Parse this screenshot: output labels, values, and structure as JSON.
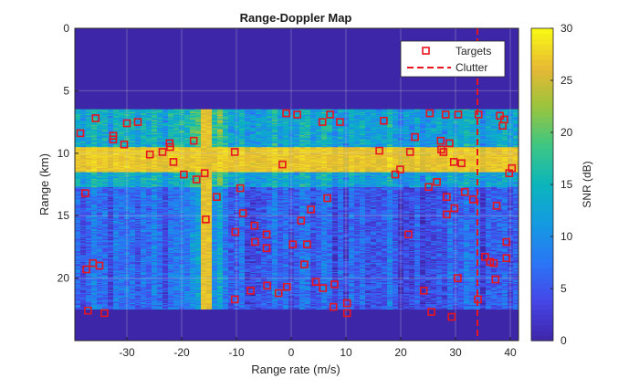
{
  "chart_data": {
    "type": "heatmap",
    "title": "Range-Doppler Map",
    "xlabel": "Range rate (m/s)",
    "ylabel": "Range (km)",
    "xlim": [
      -39.5,
      41.5
    ],
    "ylim": [
      0,
      25
    ],
    "y_reversed": true,
    "xticks": [
      -30,
      -20,
      -10,
      0,
      10,
      20,
      30,
      40
    ],
    "yticks": [
      0,
      5,
      10,
      15,
      20
    ],
    "grid": true,
    "colormap": "parula",
    "colorbar": {
      "label": "SNR (dB)",
      "limits": [
        0,
        30
      ],
      "ticks": [
        0,
        5,
        10,
        15,
        20,
        25,
        30
      ]
    },
    "heatmap_description": {
      "background_level_db": 2,
      "data_region_range_km": [
        6.5,
        22.5
      ],
      "high_snr_band_range_km": [
        9.5,
        11.5
      ],
      "high_snr_band_level_db": 28,
      "bright_column_range_rate": [
        -16.5,
        -14.5
      ],
      "bright_column_level_db": 25
    },
    "legend": {
      "position": "top-right",
      "entries": [
        {
          "label": "Targets",
          "marker": "square"
        },
        {
          "label": "Clutter",
          "style": "dashed"
        }
      ]
    },
    "clutter_line_x": 34,
    "series": [
      {
        "name": "Targets",
        "kind": "scatter",
        "marker": "square",
        "color": "#e8141e",
        "points": [
          [
            -38.5,
            8.4
          ],
          [
            -37.6,
            13.2
          ],
          [
            -37.4,
            19.3
          ],
          [
            -37.1,
            22.6
          ],
          [
            -36.2,
            18.8
          ],
          [
            -35.7,
            7.2
          ],
          [
            -35.0,
            19.0
          ],
          [
            -34.1,
            22.8
          ],
          [
            -32.5,
            8.6
          ],
          [
            -32.5,
            8.9
          ],
          [
            -30.5,
            9.3
          ],
          [
            -30.0,
            7.6
          ],
          [
            -28.0,
            7.5
          ],
          [
            -25.8,
            10.1
          ],
          [
            -23.5,
            9.9
          ],
          [
            -22.2,
            9.2
          ],
          [
            -22.1,
            9.5
          ],
          [
            -21.5,
            10.7
          ],
          [
            -19.6,
            11.7
          ],
          [
            -17.8,
            9.0
          ],
          [
            -17.3,
            12.1
          ],
          [
            -15.8,
            11.6
          ],
          [
            -15.6,
            15.3
          ],
          [
            -13.6,
            13.5
          ],
          [
            -10.3,
            9.9
          ],
          [
            -10.3,
            21.7
          ],
          [
            -10.2,
            16.3
          ],
          [
            -9.3,
            12.8
          ],
          [
            -8.8,
            14.8
          ],
          [
            -7.4,
            21.0
          ],
          [
            -6.7,
            15.8
          ],
          [
            -6.6,
            17.1
          ],
          [
            -4.5,
            16.5
          ],
          [
            -4.5,
            17.6
          ],
          [
            -4.4,
            20.6
          ],
          [
            -2.3,
            21.2
          ],
          [
            -1.6,
            10.9
          ],
          [
            -0.9,
            6.8
          ],
          [
            -0.8,
            20.7
          ],
          [
            0.3,
            17.3
          ],
          [
            1.1,
            6.9
          ],
          [
            1.8,
            15.4
          ],
          [
            2.4,
            18.9
          ],
          [
            2.9,
            17.3
          ],
          [
            3.6,
            14.5
          ],
          [
            4.5,
            20.3
          ],
          [
            5.7,
            7.5
          ],
          [
            5.8,
            20.8
          ],
          [
            6.6,
            13.6
          ],
          [
            7.1,
            6.9
          ],
          [
            7.7,
            22.3
          ],
          [
            7.9,
            20.5
          ],
          [
            8.9,
            7.5
          ],
          [
            10.2,
            22.0
          ],
          [
            10.2,
            22.8
          ],
          [
            16.1,
            9.8
          ],
          [
            16.9,
            7.4
          ],
          [
            19.0,
            11.7
          ],
          [
            19.9,
            11.3
          ],
          [
            21.4,
            16.5
          ],
          [
            21.7,
            9.9
          ],
          [
            22.6,
            8.7
          ],
          [
            24.2,
            21.0
          ],
          [
            25.1,
            12.7
          ],
          [
            25.3,
            6.8
          ],
          [
            25.6,
            22.7
          ],
          [
            26.6,
            12.3
          ],
          [
            27.3,
            9.0
          ],
          [
            27.4,
            9.7
          ],
          [
            27.8,
            9.9
          ],
          [
            28.2,
            6.9
          ],
          [
            28.4,
            13.5
          ],
          [
            28.4,
            14.9
          ],
          [
            28.9,
            9.2
          ],
          [
            29.3,
            23.1
          ],
          [
            29.7,
            10.7
          ],
          [
            29.8,
            14.4
          ],
          [
            30.4,
            20.0
          ],
          [
            30.5,
            6.9
          ],
          [
            31.1,
            10.8
          ],
          [
            31.7,
            13.1
          ],
          [
            33.2,
            13.7
          ],
          [
            34.2,
            6.9
          ],
          [
            34.1,
            21.7
          ],
          [
            35.4,
            18.3
          ],
          [
            36.3,
            18.7
          ],
          [
            37.0,
            18.8
          ],
          [
            37.3,
            20.1
          ],
          [
            37.5,
            14.2
          ],
          [
            38.1,
            7.0
          ],
          [
            38.6,
            7.8
          ],
          [
            38.9,
            7.3
          ],
          [
            39.3,
            18.4
          ],
          [
            39.3,
            17.1
          ],
          [
            39.8,
            11.6
          ],
          [
            40.3,
            11.2
          ]
        ]
      }
    ]
  }
}
